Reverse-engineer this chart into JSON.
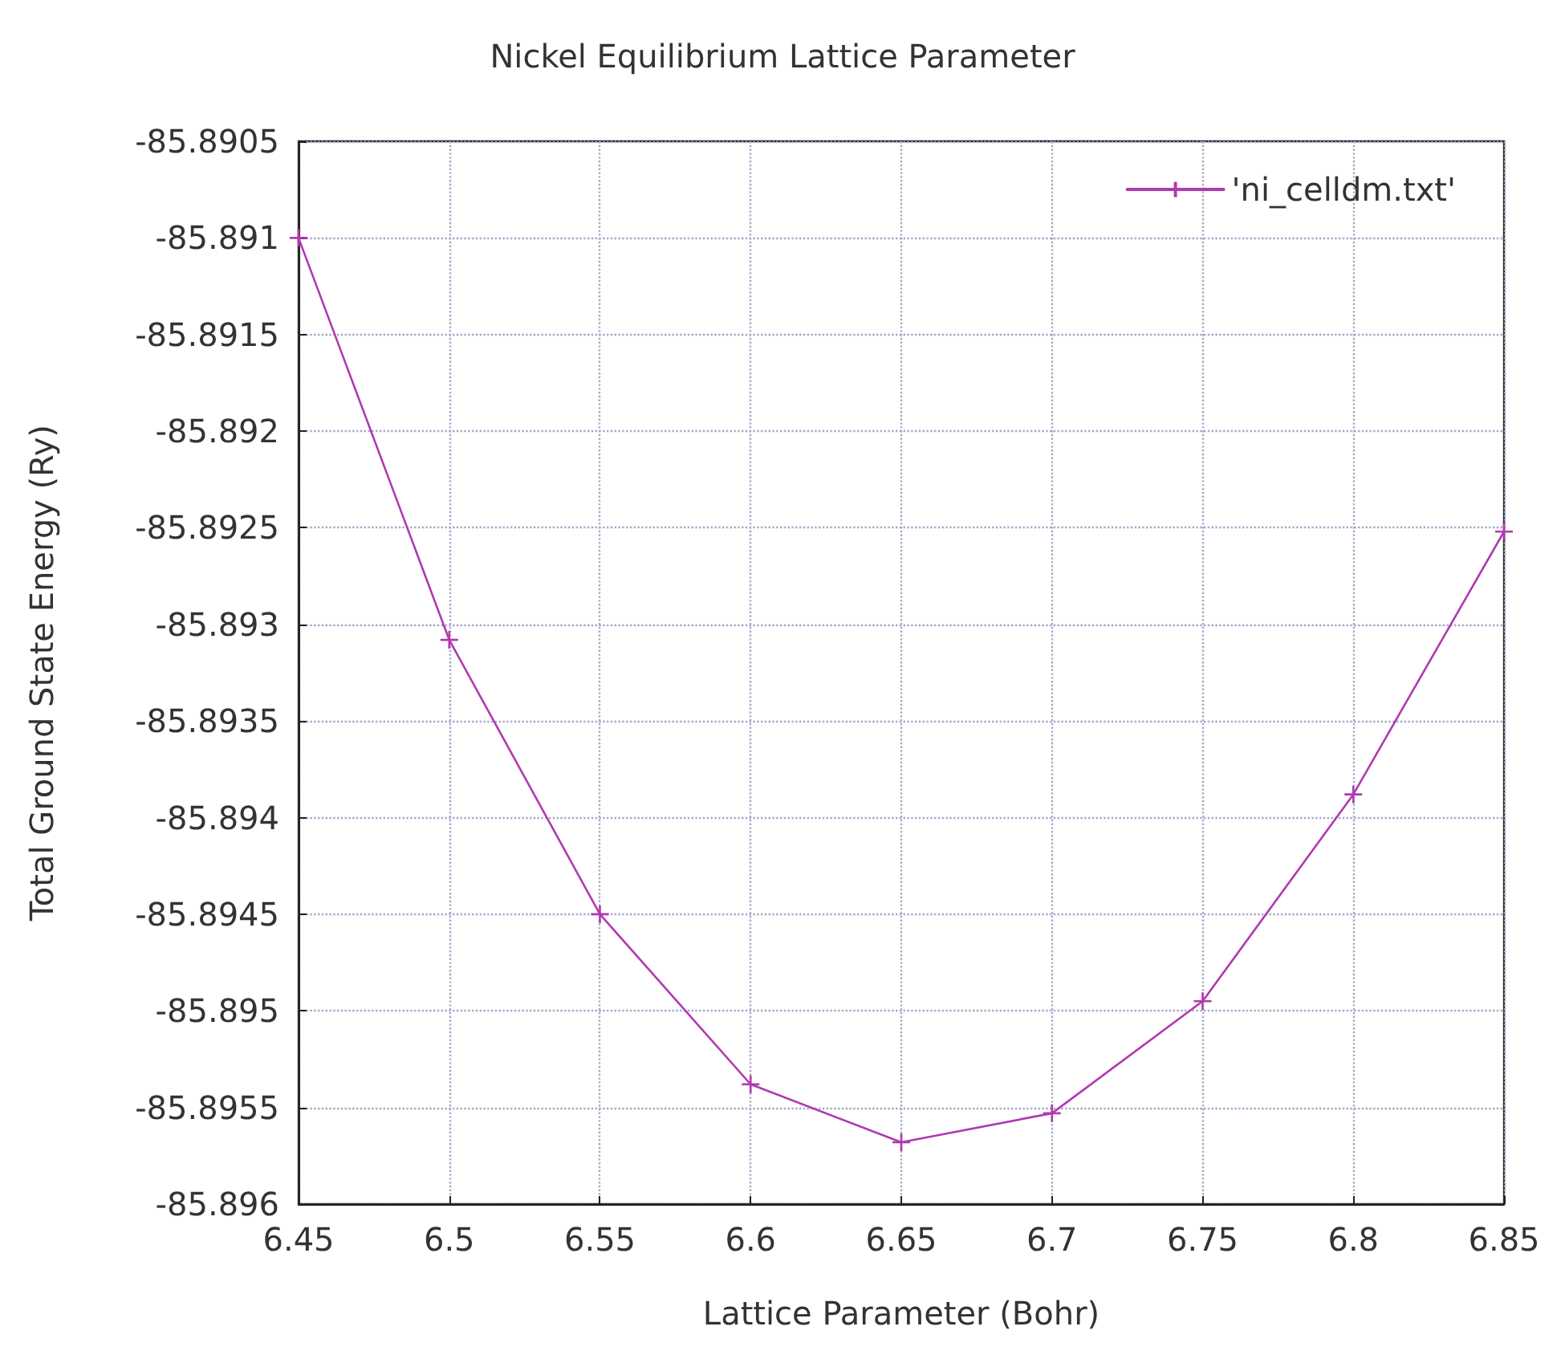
{
  "chart_data": {
    "type": "line",
    "title": "Nickel Equilibrium Lattice Parameter",
    "xlabel": "Lattice Parameter (Bohr)",
    "ylabel": "Total Ground State Energy (Ry)",
    "x": [
      6.45,
      6.5,
      6.55,
      6.6,
      6.65,
      6.7,
      6.75,
      6.8,
      6.85
    ],
    "series": [
      {
        "name": "'ni_celldm.txt'",
        "color": "#b03ab0",
        "values": [
          -85.891,
          -85.89308,
          -85.8945,
          -85.89538,
          -85.89568,
          -85.89553,
          -85.89495,
          -85.89388,
          -85.89252
        ]
      }
    ],
    "xlim": [
      6.45,
      6.85
    ],
    "xticks": [
      6.45,
      6.5,
      6.55,
      6.6,
      6.65,
      6.7,
      6.75,
      6.8,
      6.85
    ],
    "ylim": [
      -85.896,
      -85.8905
    ],
    "yticks": [
      -85.896,
      -85.8955,
      -85.895,
      -85.8945,
      -85.894,
      -85.8935,
      -85.893,
      -85.8925,
      -85.892,
      -85.8915,
      -85.891,
      -85.8905
    ],
    "grid": true,
    "legend": "top right",
    "marker": "cross",
    "line_style": "solid"
  }
}
